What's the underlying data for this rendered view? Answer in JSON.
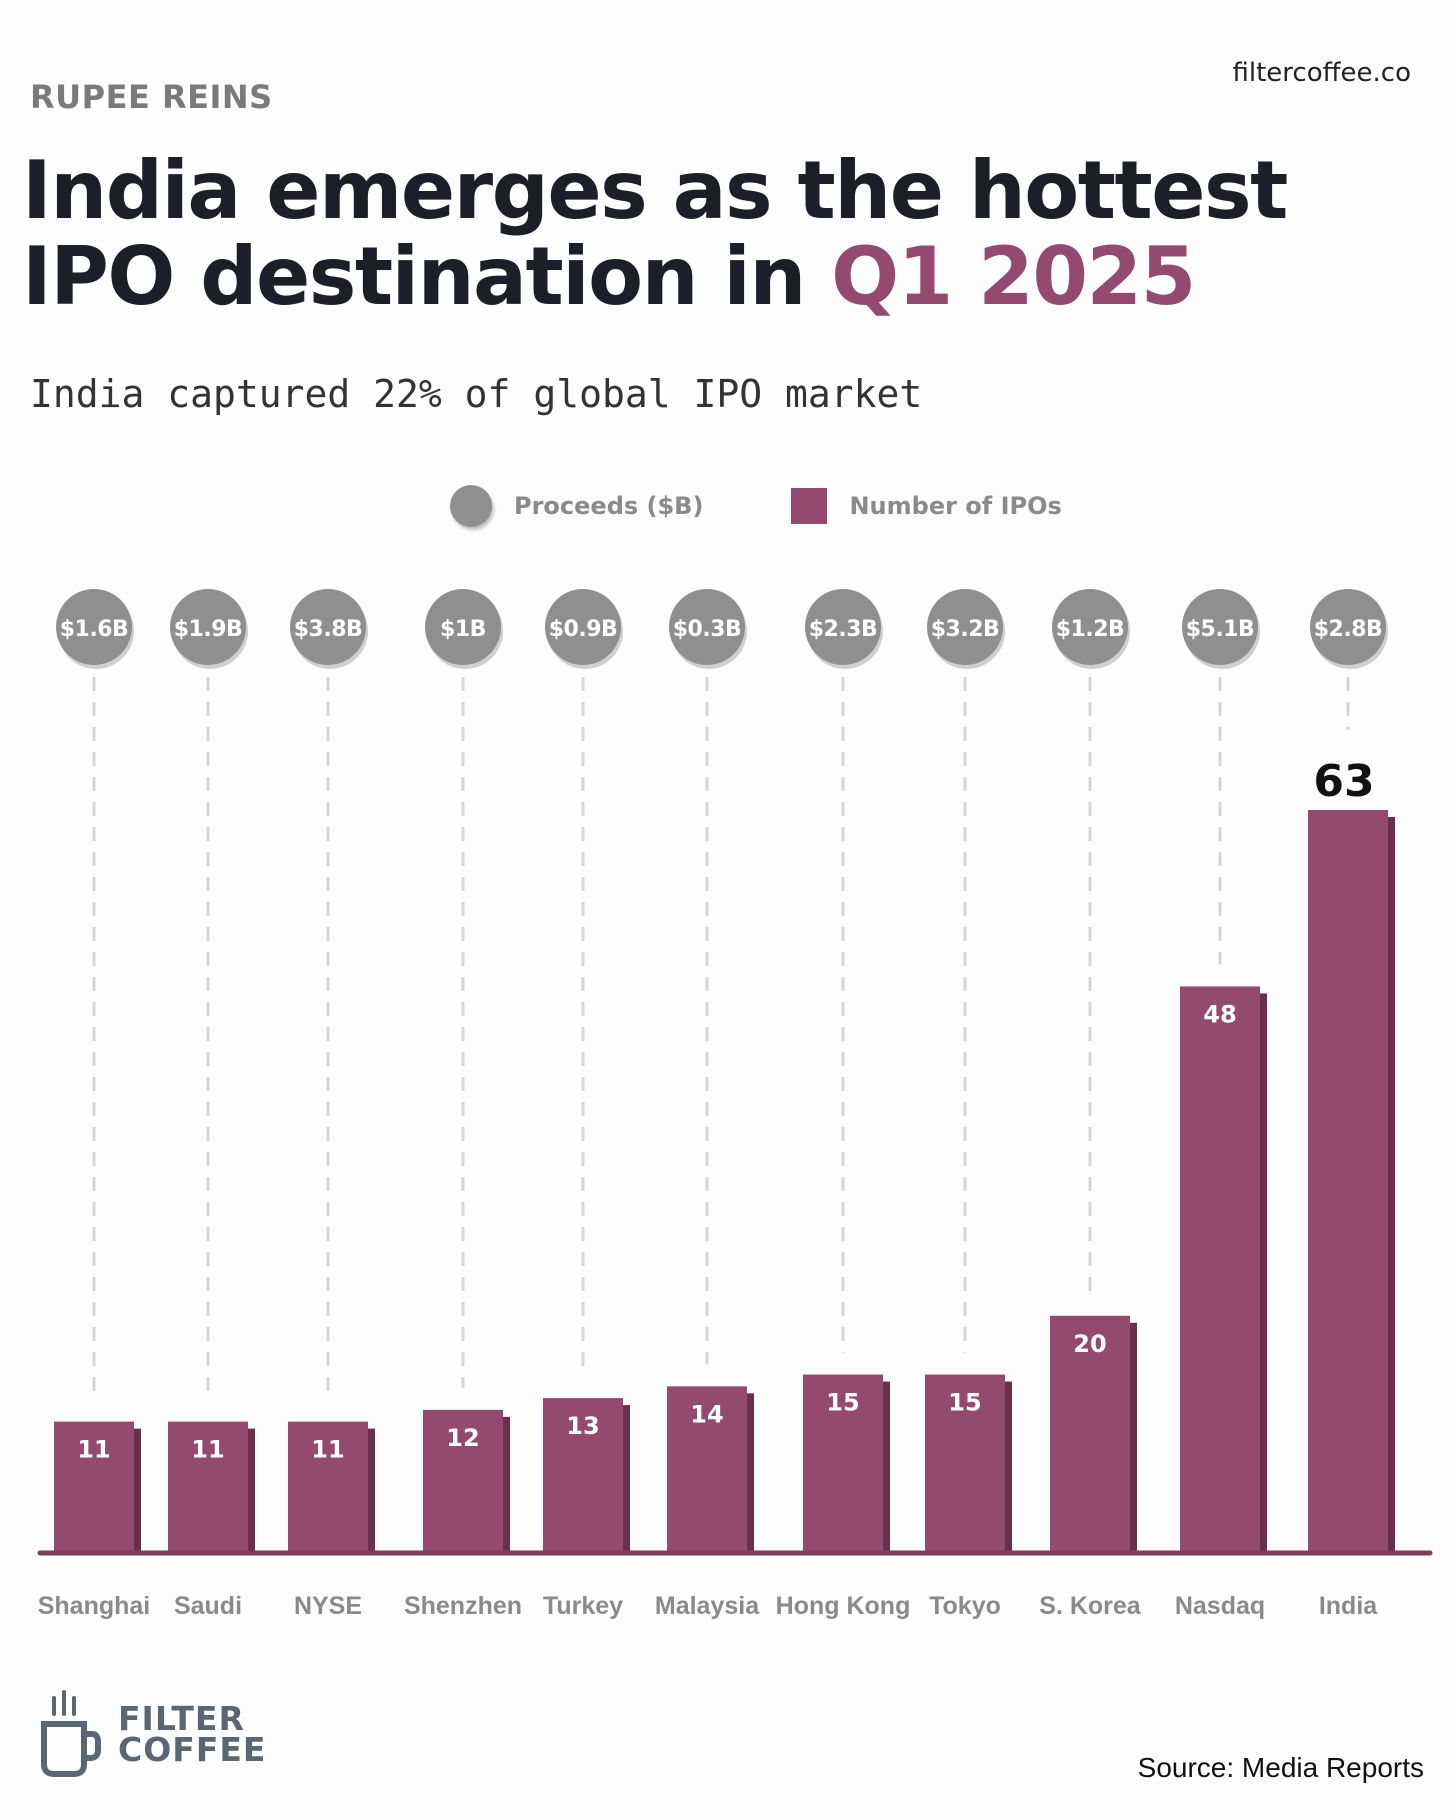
{
  "header": {
    "eyebrow": "RUPEE REINS",
    "site": "filtercoffee.co",
    "headline_part1": "India emerges as the hottest IPO destination in ",
    "headline_highlight": "Q1 2025",
    "subtitle": "India captured 22% of global IPO market"
  },
  "legend": {
    "proceeds_label": "Proceeds ($B)",
    "ipos_label": "Number of IPOs"
  },
  "chart_data": {
    "type": "bar",
    "categories": [
      "Shanghai",
      "Saudi",
      "NYSE",
      "Shenzhen",
      "Turkey",
      "Malaysia",
      "Hong Kong",
      "Tokyo",
      "S. Korea",
      "Nasdaq",
      "India"
    ],
    "series": [
      {
        "name": "Number of IPOs",
        "values": [
          11,
          11,
          11,
          12,
          13,
          14,
          15,
          15,
          20,
          48,
          63
        ]
      },
      {
        "name": "Proceeds ($B)",
        "values": [
          1.6,
          1.9,
          3.8,
          1,
          0.9,
          0.3,
          2.3,
          3.2,
          1.2,
          5.1,
          2.8
        ]
      }
    ],
    "proceeds_labels": [
      "$1.6B",
      "$1.9B",
      "$3.8B",
      "$1B",
      "$0.9B",
      "$0.3B",
      "$2.3B",
      "$3.2B",
      "$1.2B",
      "$5.1B",
      "$2.8B"
    ],
    "highlight_category": "India",
    "ylim": [
      0,
      63
    ],
    "grid": false,
    "legend_position": "top-center",
    "colors": {
      "bar": "#944a6e",
      "bar_shadow": "#6a2f4b",
      "bubble": "#8f8f8f",
      "axis": "#7d3d5b",
      "dash": "#d6d6d6"
    }
  },
  "footer": {
    "brand_line1": "FILTER",
    "brand_line2": "COFFEE",
    "brand_icon": "coffee-cup-icon",
    "source": "Source: Media Reports"
  }
}
